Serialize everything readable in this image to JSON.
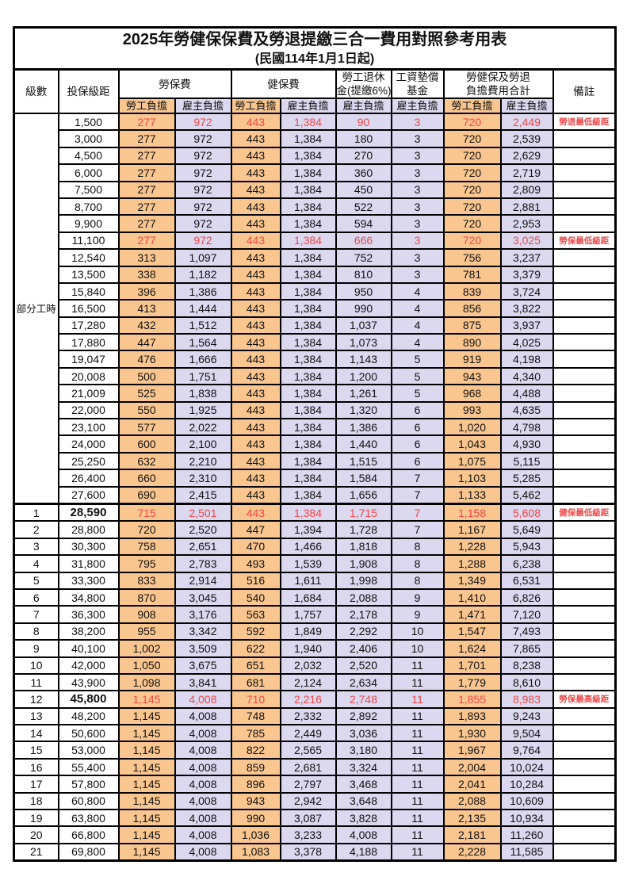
{
  "title": "2025年勞健保保費及勞退提繳三合一費用對照參考用表",
  "subtitle": "(民國114年1月1日起)",
  "colors": {
    "orange": "#fac690",
    "lavender": "#dbd8ef",
    "red": "#ee4747"
  },
  "header": {
    "col_level": "級數",
    "col_bracket": "投保級距",
    "group_labor": "勞保費",
    "group_health": "健保費",
    "group_pension_l1": "勞工退休",
    "group_pension_l2": "金(提繳6%)",
    "group_wagefund_l1": "工資墊償",
    "group_wagefund_l2": "基金",
    "group_total_l1": "勞健保及勞退",
    "group_total_l2": "負擔費用合計",
    "col_note": "備註",
    "sub_employee": "勞工負擔",
    "sub_employer": "雇主負擔"
  },
  "part_time": {
    "label": "部分工時",
    "rowspan": 23
  },
  "rows": [
    {
      "level": "",
      "bracket": "1,500",
      "v": [
        "277",
        "972",
        "443",
        "1,384",
        "90",
        "3",
        "720",
        "2,449"
      ],
      "note": "勞退最低級距",
      "red": true,
      "bold": false,
      "section": false
    },
    {
      "level": "",
      "bracket": "3,000",
      "v": [
        "277",
        "972",
        "443",
        "1,384",
        "180",
        "3",
        "720",
        "2,539"
      ],
      "note": "",
      "red": false,
      "bold": false,
      "section": false
    },
    {
      "level": "",
      "bracket": "4,500",
      "v": [
        "277",
        "972",
        "443",
        "1,384",
        "270",
        "3",
        "720",
        "2,629"
      ],
      "note": "",
      "red": false,
      "bold": false,
      "section": false
    },
    {
      "level": "",
      "bracket": "6,000",
      "v": [
        "277",
        "972",
        "443",
        "1,384",
        "360",
        "3",
        "720",
        "2,719"
      ],
      "note": "",
      "red": false,
      "bold": false,
      "section": false
    },
    {
      "level": "",
      "bracket": "7,500",
      "v": [
        "277",
        "972",
        "443",
        "1,384",
        "450",
        "3",
        "720",
        "2,809"
      ],
      "note": "",
      "red": false,
      "bold": false,
      "section": false
    },
    {
      "level": "",
      "bracket": "8,700",
      "v": [
        "277",
        "972",
        "443",
        "1,384",
        "522",
        "3",
        "720",
        "2,881"
      ],
      "note": "",
      "red": false,
      "bold": false,
      "section": false
    },
    {
      "level": "",
      "bracket": "9,900",
      "v": [
        "277",
        "972",
        "443",
        "1,384",
        "594",
        "3",
        "720",
        "2,953"
      ],
      "note": "",
      "red": false,
      "bold": false,
      "section": false
    },
    {
      "level": "",
      "bracket": "11,100",
      "v": [
        "277",
        "972",
        "443",
        "1,384",
        "666",
        "3",
        "720",
        "3,025"
      ],
      "note": "勞保最低級距",
      "red": true,
      "bold": false,
      "section": false
    },
    {
      "level": "",
      "bracket": "12,540",
      "v": [
        "313",
        "1,097",
        "443",
        "1,384",
        "752",
        "3",
        "756",
        "3,237"
      ],
      "note": "",
      "red": false,
      "bold": false,
      "section": false
    },
    {
      "level": "",
      "bracket": "13,500",
      "v": [
        "338",
        "1,182",
        "443",
        "1,384",
        "810",
        "3",
        "781",
        "3,379"
      ],
      "note": "",
      "red": false,
      "bold": false,
      "section": false
    },
    {
      "level": "",
      "bracket": "15,840",
      "v": [
        "396",
        "1,386",
        "443",
        "1,384",
        "950",
        "4",
        "839",
        "3,724"
      ],
      "note": "",
      "red": false,
      "bold": false,
      "section": false
    },
    {
      "level": "",
      "bracket": "16,500",
      "v": [
        "413",
        "1,444",
        "443",
        "1,384",
        "990",
        "4",
        "856",
        "3,822"
      ],
      "note": "",
      "red": false,
      "bold": false,
      "section": false
    },
    {
      "level": "",
      "bracket": "17,280",
      "v": [
        "432",
        "1,512",
        "443",
        "1,384",
        "1,037",
        "4",
        "875",
        "3,937"
      ],
      "note": "",
      "red": false,
      "bold": false,
      "section": false
    },
    {
      "level": "",
      "bracket": "17,880",
      "v": [
        "447",
        "1,564",
        "443",
        "1,384",
        "1,073",
        "4",
        "890",
        "4,025"
      ],
      "note": "",
      "red": false,
      "bold": false,
      "section": false
    },
    {
      "level": "",
      "bracket": "19,047",
      "v": [
        "476",
        "1,666",
        "443",
        "1,384",
        "1,143",
        "5",
        "919",
        "4,198"
      ],
      "note": "",
      "red": false,
      "bold": false,
      "section": false
    },
    {
      "level": "",
      "bracket": "20,008",
      "v": [
        "500",
        "1,751",
        "443",
        "1,384",
        "1,200",
        "5",
        "943",
        "4,340"
      ],
      "note": "",
      "red": false,
      "bold": false,
      "section": false
    },
    {
      "level": "",
      "bracket": "21,009",
      "v": [
        "525",
        "1,838",
        "443",
        "1,384",
        "1,261",
        "5",
        "968",
        "4,488"
      ],
      "note": "",
      "red": false,
      "bold": false,
      "section": false
    },
    {
      "level": "",
      "bracket": "22,000",
      "v": [
        "550",
        "1,925",
        "443",
        "1,384",
        "1,320",
        "6",
        "993",
        "4,635"
      ],
      "note": "",
      "red": false,
      "bold": false,
      "section": false
    },
    {
      "level": "",
      "bracket": "23,100",
      "v": [
        "577",
        "2,022",
        "443",
        "1,384",
        "1,386",
        "6",
        "1,020",
        "4,798"
      ],
      "note": "",
      "red": false,
      "bold": false,
      "section": false
    },
    {
      "level": "",
      "bracket": "24,000",
      "v": [
        "600",
        "2,100",
        "443",
        "1,384",
        "1,440",
        "6",
        "1,043",
        "4,930"
      ],
      "note": "",
      "red": false,
      "bold": false,
      "section": false
    },
    {
      "level": "",
      "bracket": "25,250",
      "v": [
        "632",
        "2,210",
        "443",
        "1,384",
        "1,515",
        "6",
        "1,075",
        "5,115"
      ],
      "note": "",
      "red": false,
      "bold": false,
      "section": false
    },
    {
      "level": "",
      "bracket": "26,400",
      "v": [
        "660",
        "2,310",
        "443",
        "1,384",
        "1,584",
        "7",
        "1,103",
        "5,285"
      ],
      "note": "",
      "red": false,
      "bold": false,
      "section": false
    },
    {
      "level": "",
      "bracket": "27,600",
      "v": [
        "690",
        "2,415",
        "443",
        "1,384",
        "1,656",
        "7",
        "1,133",
        "5,462"
      ],
      "note": "",
      "red": false,
      "bold": false,
      "section": false
    },
    {
      "level": "1",
      "bracket": "28,590",
      "v": [
        "715",
        "2,501",
        "443",
        "1,384",
        "1,715",
        "7",
        "1,158",
        "5,608"
      ],
      "note": "健保最低級距",
      "red": true,
      "bold": true,
      "section": true
    },
    {
      "level": "2",
      "bracket": "28,800",
      "v": [
        "720",
        "2,520",
        "447",
        "1,394",
        "1,728",
        "7",
        "1,167",
        "5,649"
      ],
      "note": "",
      "red": false,
      "bold": false,
      "section": false
    },
    {
      "level": "3",
      "bracket": "30,300",
      "v": [
        "758",
        "2,651",
        "470",
        "1,466",
        "1,818",
        "8",
        "1,228",
        "5,943"
      ],
      "note": "",
      "red": false,
      "bold": false,
      "section": false
    },
    {
      "level": "4",
      "bracket": "31,800",
      "v": [
        "795",
        "2,783",
        "493",
        "1,539",
        "1,908",
        "8",
        "1,288",
        "6,238"
      ],
      "note": "",
      "red": false,
      "bold": false,
      "section": false
    },
    {
      "level": "5",
      "bracket": "33,300",
      "v": [
        "833",
        "2,914",
        "516",
        "1,611",
        "1,998",
        "8",
        "1,349",
        "6,531"
      ],
      "note": "",
      "red": false,
      "bold": false,
      "section": false
    },
    {
      "level": "6",
      "bracket": "34,800",
      "v": [
        "870",
        "3,045",
        "540",
        "1,684",
        "2,088",
        "9",
        "1,410",
        "6,826"
      ],
      "note": "",
      "red": false,
      "bold": false,
      "section": false
    },
    {
      "level": "7",
      "bracket": "36,300",
      "v": [
        "908",
        "3,176",
        "563",
        "1,757",
        "2,178",
        "9",
        "1,471",
        "7,120"
      ],
      "note": "",
      "red": false,
      "bold": false,
      "section": false
    },
    {
      "level": "8",
      "bracket": "38,200",
      "v": [
        "955",
        "3,342",
        "592",
        "1,849",
        "2,292",
        "10",
        "1,547",
        "7,493"
      ],
      "note": "",
      "red": false,
      "bold": false,
      "section": false
    },
    {
      "level": "9",
      "bracket": "40,100",
      "v": [
        "1,002",
        "3,509",
        "622",
        "1,940",
        "2,406",
        "10",
        "1,624",
        "7,865"
      ],
      "note": "",
      "red": false,
      "bold": false,
      "section": false
    },
    {
      "level": "10",
      "bracket": "42,000",
      "v": [
        "1,050",
        "3,675",
        "651",
        "2,032",
        "2,520",
        "11",
        "1,701",
        "8,238"
      ],
      "note": "",
      "red": false,
      "bold": false,
      "section": false
    },
    {
      "level": "11",
      "bracket": "43,900",
      "v": [
        "1,098",
        "3,841",
        "681",
        "2,124",
        "2,634",
        "11",
        "1,779",
        "8,610"
      ],
      "note": "",
      "red": false,
      "bold": false,
      "section": false
    },
    {
      "level": "12",
      "bracket": "45,800",
      "v": [
        "1,145",
        "4,008",
        "710",
        "2,216",
        "2,748",
        "11",
        "1,855",
        "8,983"
      ],
      "note": "勞保最高級距",
      "red": true,
      "bold": true,
      "section": false
    },
    {
      "level": "13",
      "bracket": "48,200",
      "v": [
        "1,145",
        "4,008",
        "748",
        "2,332",
        "2,892",
        "11",
        "1,893",
        "9,243"
      ],
      "note": "",
      "red": false,
      "bold": false,
      "section": false
    },
    {
      "level": "14",
      "bracket": "50,600",
      "v": [
        "1,145",
        "4,008",
        "785",
        "2,449",
        "3,036",
        "11",
        "1,930",
        "9,504"
      ],
      "note": "",
      "red": false,
      "bold": false,
      "section": false
    },
    {
      "level": "15",
      "bracket": "53,000",
      "v": [
        "1,145",
        "4,008",
        "822",
        "2,565",
        "3,180",
        "11",
        "1,967",
        "9,764"
      ],
      "note": "",
      "red": false,
      "bold": false,
      "section": false
    },
    {
      "level": "16",
      "bracket": "55,400",
      "v": [
        "1,145",
        "4,008",
        "859",
        "2,681",
        "3,324",
        "11",
        "2,004",
        "10,024"
      ],
      "note": "",
      "red": false,
      "bold": false,
      "section": false
    },
    {
      "level": "17",
      "bracket": "57,800",
      "v": [
        "1,145",
        "4,008",
        "896",
        "2,797",
        "3,468",
        "11",
        "2,041",
        "10,284"
      ],
      "note": "",
      "red": false,
      "bold": false,
      "section": false
    },
    {
      "level": "18",
      "bracket": "60,800",
      "v": [
        "1,145",
        "4,008",
        "943",
        "2,942",
        "3,648",
        "11",
        "2,088",
        "10,609"
      ],
      "note": "",
      "red": false,
      "bold": false,
      "section": false
    },
    {
      "level": "19",
      "bracket": "63,800",
      "v": [
        "1,145",
        "4,008",
        "990",
        "3,087",
        "3,828",
        "11",
        "2,135",
        "10,934"
      ],
      "note": "",
      "red": false,
      "bold": false,
      "section": false
    },
    {
      "level": "20",
      "bracket": "66,800",
      "v": [
        "1,145",
        "4,008",
        "1,036",
        "3,233",
        "4,008",
        "11",
        "2,181",
        "11,260"
      ],
      "note": "",
      "red": false,
      "bold": false,
      "section": false
    },
    {
      "level": "21",
      "bracket": "69,800",
      "v": [
        "1,145",
        "4,008",
        "1,083",
        "3,378",
        "4,188",
        "11",
        "2,228",
        "11,585"
      ],
      "note": "",
      "red": false,
      "bold": false,
      "section": false
    }
  ]
}
